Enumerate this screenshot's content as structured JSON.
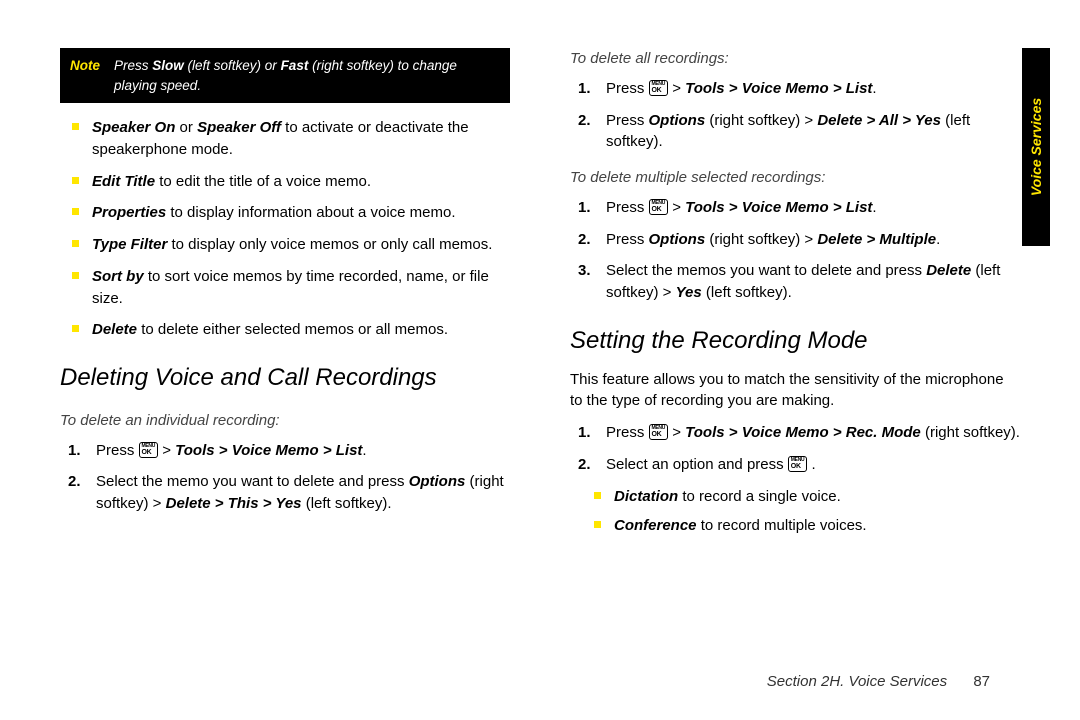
{
  "colors": {
    "accent": "#ffe600",
    "note_bg": "#000000",
    "note_text": "#ffffff"
  },
  "note": {
    "label": "Note",
    "body_html": "Press <span class='b'>Slow</span> (left softkey) or <span class='b'>Fast</span> (right softkey) to change playing speed."
  },
  "left_bullets": [
    "<span class='bi'>Speaker On</span> or <span class='bi'>Speaker Off</span> to activate or deactivate the speakerphone mode.",
    "<span class='bi'>Edit Title</span> to edit the title of a voice memo.",
    "<span class='bi'>Properties</span> to display information about a voice memo.",
    "<span class='bi'>Type Filter</span> to display only voice memos or only call memos.",
    "<span class='bi'>Sort by</span> to sort voice memos by time recorded, name, or file size.",
    "<span class='bi'>Delete</span> to delete either selected memos or all memos."
  ],
  "heading_delete": "Deleting Voice and Call Recordings",
  "sub_individual": "To delete an individual recording:",
  "steps_individual": [
    "Press <span class='ok-icon' data-name='menu-ok-icon' data-interactable='false'><span class='m'>MENU</span>OK</span> > <span class='bi'>Tools > Voice Memo > List</span>.",
    "Select the memo you want to delete and press <span class='bi'>Options</span> (right softkey) > <span class='bi'>Delete > This > Yes</span> (left softkey)."
  ],
  "sub_all": "To delete all recordings:",
  "steps_all": [
    "Press <span class='ok-icon' data-name='menu-ok-icon' data-interactable='false'><span class='m'>MENU</span>OK</span> > <span class='bi'>Tools > Voice Memo > List</span>.",
    "Press <span class='bi'>Options</span> (right softkey) > <span class='bi'>Delete > All > Yes</span> (left softkey)."
  ],
  "sub_multiple": "To delete multiple selected recordings:",
  "steps_multiple": [
    "Press <span class='ok-icon' data-name='menu-ok-icon' data-interactable='false'><span class='m'>MENU</span>OK</span> > <span class='bi'>Tools > Voice Memo > List</span>.",
    "Press <span class='bi'>Options</span> (right softkey) > <span class='bi'>Delete > Multiple</span>.",
    "Select the memos you want to delete and press <span class='bi'>Delete</span> (left softkey) > <span class='bi'>Yes</span> (left softkey)."
  ],
  "heading_recmode": "Setting the Recording Mode",
  "recmode_intro": "This feature allows you to match the sensitivity of the microphone to the type of recording you are making.",
  "steps_recmode": [
    "Press <span class='ok-icon' data-name='menu-ok-icon' data-interactable='false'><span class='m'>MENU</span>OK</span> > <span class='bi'>Tools > Voice Memo > Rec. Mode</span> (right softkey).",
    "Select an option and press <span class='ok-icon' data-name='menu-ok-icon' data-interactable='false'><span class='m'>MENU</span>OK</span> ."
  ],
  "recmode_sub": [
    "<span class='bi'>Dictation</span> to record a single voice.",
    "<span class='bi'>Conference</span> to record multiple voices."
  ],
  "side_tab": "Voice Services",
  "footer_section": "Section 2H. Voice Services",
  "footer_page": "87"
}
